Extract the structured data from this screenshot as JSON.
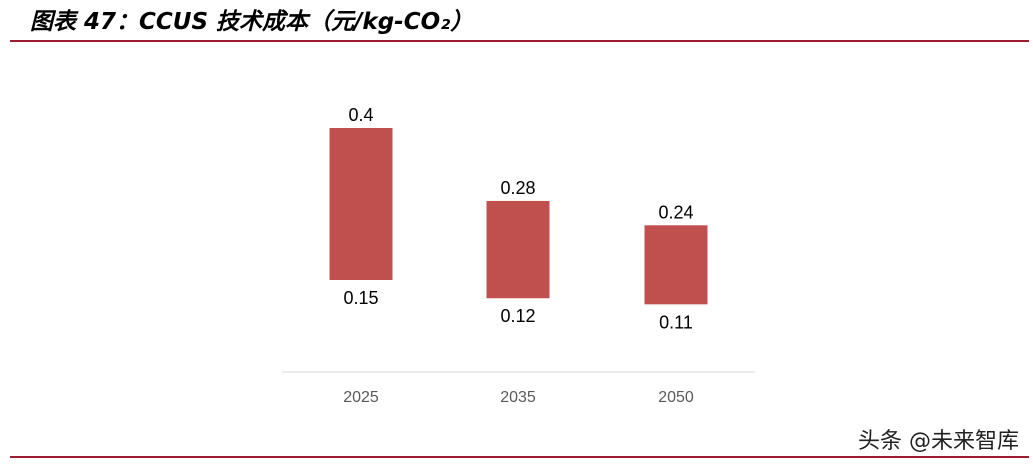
{
  "header": {
    "title": "图表 47：CCUS 技术成本（元/kg-CO₂）"
  },
  "watermark": "头条 @未来智库",
  "colors": {
    "bar": "#c0504d",
    "rule": "#9b1b30",
    "axis": "#d9d9d9",
    "tick_text": "#595959"
  },
  "chart_data": {
    "type": "bar",
    "subtype": "floating-range",
    "categories": [
      "2025",
      "2035",
      "2050"
    ],
    "series": [
      {
        "low": [
          0.15,
          0.12,
          0.11
        ],
        "high": [
          0.4,
          0.28,
          0.24
        ]
      }
    ],
    "low_labels": [
      "0.15",
      "0.12",
      "0.11"
    ],
    "high_labels": [
      "0.4",
      "0.28",
      "0.24"
    ],
    "ylim": [
      0,
      0.45
    ],
    "grid": false,
    "legend": "none"
  }
}
